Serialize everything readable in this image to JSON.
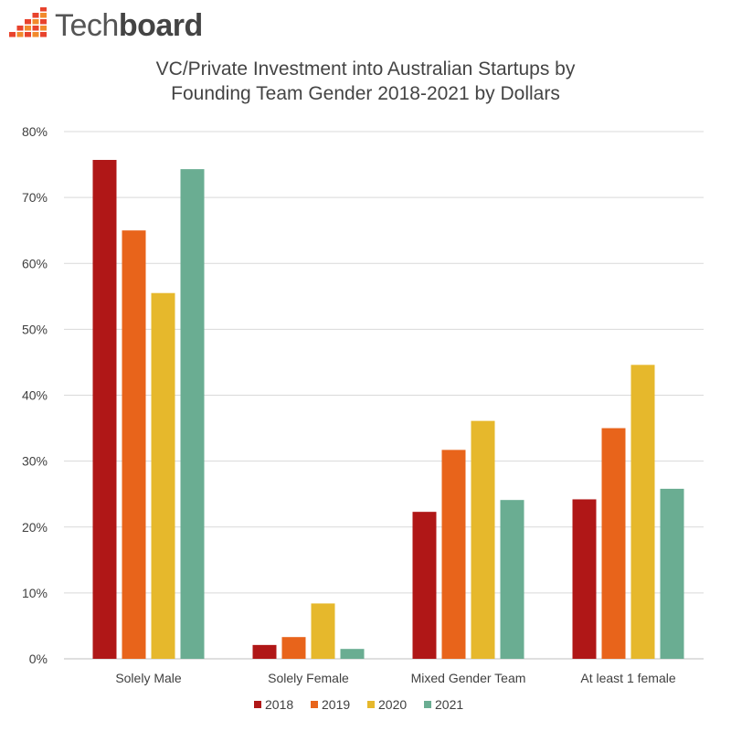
{
  "brand": {
    "name_light": "Tech",
    "name_bold": "board",
    "logo_icon": "grid-wave-logo-icon",
    "logo_colors": [
      "#e8432d",
      "#f28a2c"
    ]
  },
  "chart_data": {
    "type": "bar",
    "title_line1": "VC/Private Investment into Australian Startups by",
    "title_line2": "Founding Team Gender 2018-2021 by Dollars",
    "xlabel": "",
    "ylabel": "",
    "ylim": [
      0,
      80
    ],
    "y_ticks": [
      "0%",
      "10%",
      "20%",
      "30%",
      "40%",
      "50%",
      "60%",
      "70%",
      "80%"
    ],
    "grid": true,
    "legend_position": "bottom",
    "categories": [
      "Solely Male",
      "Solely Female",
      "Mixed Gender Team",
      "At least 1 female"
    ],
    "series": [
      {
        "name": "2018",
        "color": "#b01717",
        "values": [
          75.7,
          2.1,
          22.3,
          24.2
        ]
      },
      {
        "name": "2019",
        "color": "#e8641b",
        "values": [
          65.0,
          3.3,
          31.7,
          35.0
        ]
      },
      {
        "name": "2020",
        "color": "#e6b82c",
        "values": [
          55.5,
          8.4,
          36.1,
          44.6
        ]
      },
      {
        "name": "2021",
        "color": "#6aad92",
        "values": [
          74.3,
          1.5,
          24.1,
          25.8
        ]
      }
    ]
  }
}
